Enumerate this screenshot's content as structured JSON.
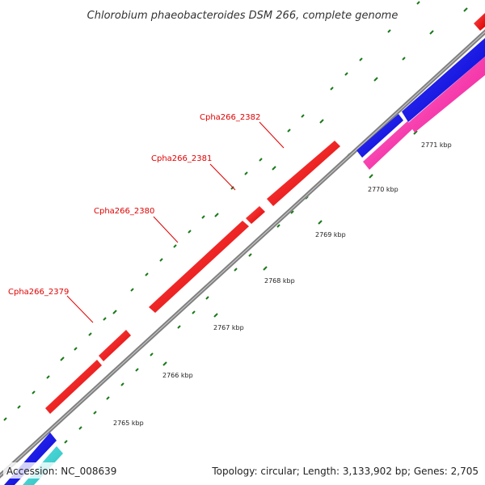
{
  "title": "Chlorobium phaeobacteroides DSM 266, complete genome",
  "footer": {
    "accession": "Accession: NC_008639",
    "summary": "Topology: circular; Length: 3,133,902 bp; Genes: 2,705"
  },
  "genes": [
    {
      "label": "Cpha266_2379",
      "color": "#ff0000",
      "strand": "plus"
    },
    {
      "label": "Cpha266_2380",
      "color": "#ff0000",
      "strand": "plus"
    },
    {
      "label": "Cpha266_2381",
      "color": "#ff0000",
      "strand": "plus"
    },
    {
      "label": "Cpha266_2382",
      "color": "#ff0000",
      "strand": "plus"
    }
  ],
  "kbp_ticks": [
    "2765 kbp",
    "2766 kbp",
    "2767 kbp",
    "2768 kbp",
    "2769 kbp",
    "2770 kbp",
    "2771 kbp"
  ],
  "colors": {
    "backbone": "#888888",
    "plus_strand_gene": "#ff0000",
    "minus_strand_gene": "#0000ee",
    "pink_feature": "#ff33aa",
    "cyan_feature": "#33cccc",
    "tick": "#1a7a1a"
  }
}
